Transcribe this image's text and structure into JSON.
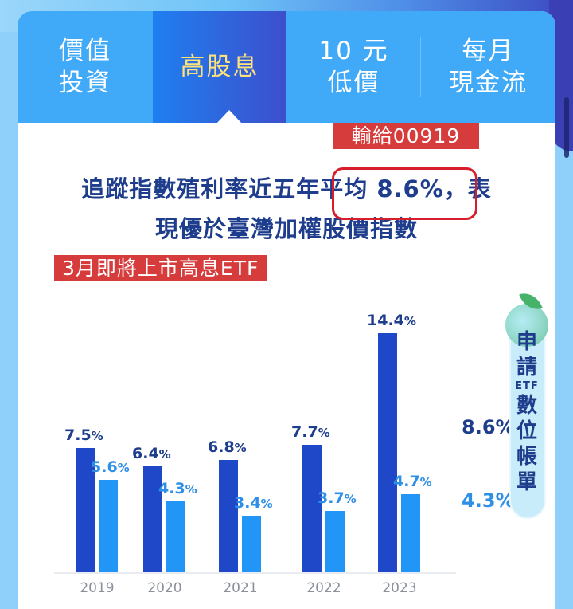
{
  "tabs": [
    {
      "label": "價值\n投資",
      "active": false
    },
    {
      "label": "高股息",
      "active": true
    },
    {
      "label": "10 元\n低價",
      "active": false
    },
    {
      "label": "每月\n現金流",
      "active": false
    }
  ],
  "annotations": {
    "lose_tag": "輸給00919",
    "march_tag": "3月即將上市高息ETF"
  },
  "headline": {
    "line1_prefix": "追蹤指數殖利率近五年",
    "line1_highlight": "平均 8.6%",
    "line1_suffix": "，表",
    "line2": "現優於臺灣加權股價指數"
  },
  "side_badge": {
    "chars_top": [
      "申",
      "請"
    ],
    "etf": "ETF",
    "chars_bottom": [
      "數",
      "位",
      "帳",
      "單"
    ]
  },
  "colors": {
    "tab_bg": "#40a9f8",
    "tab_active_text": "#ffe27a",
    "dark_series": "#1f48c9",
    "light_series": "#2196f6",
    "red_tag": "#d73c3c",
    "headline": "#1e3d8c"
  },
  "chart_data": {
    "type": "bar",
    "title": "追蹤指數殖利率近五年平均 8.6%，表現優於臺灣加權股價指數",
    "categories": [
      "2019",
      "2020",
      "2021",
      "2022",
      "2023"
    ],
    "series": [
      {
        "name": "追蹤指數殖利率",
        "values": [
          7.5,
          6.4,
          6.8,
          7.7,
          14.4
        ],
        "color": "#1f48c9",
        "labels": [
          "7.5%",
          "6.4%",
          "6.8%",
          "7.7%",
          "14.4%"
        ]
      },
      {
        "name": "臺灣加權股價指數",
        "values": [
          5.6,
          4.3,
          3.4,
          3.7,
          4.7
        ],
        "color": "#2196f6",
        "labels": [
          "5.6%",
          "4.3%",
          "3.4%",
          "3.7%",
          "4.7%"
        ]
      }
    ],
    "reference_lines": [
      {
        "value": 8.6,
        "label": "8.6%",
        "series": "追蹤指數殖利率"
      },
      {
        "value": 4.3,
        "label": "4.3%",
        "series": "臺灣加權股價指數"
      }
    ],
    "xlabel": "",
    "ylabel": "",
    "ylim": [
      0,
      15
    ],
    "grid": "dashed reference lines only",
    "legend": "none"
  }
}
